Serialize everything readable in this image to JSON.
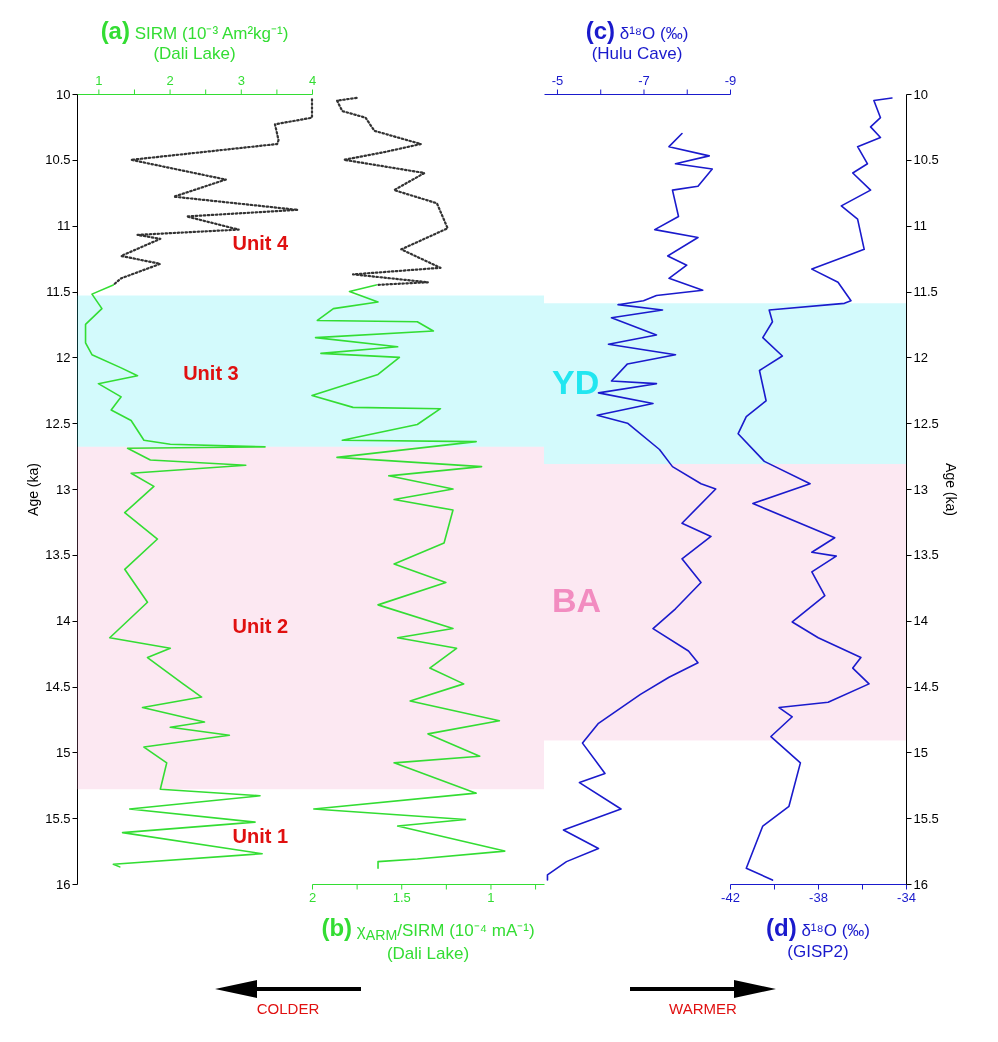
{
  "chart_data": [
    {
      "type": "line",
      "xlabel": "(a) SIRM (10⁻³ Am²kg⁻¹)\n(Dali Lake)",
      "ylabel": "Age (ka)",
      "xlim": [
        0.7,
        4
      ],
      "xticks": [
        1,
        {
          "value": 1.5,
          "label": null
        },
        2,
        {
          "value": 2.5,
          "label": null
        },
        3,
        {
          "value": 3.5,
          "label": null
        },
        4
      ],
      "ylim": [
        16,
        10
      ],
      "yticks": [
        10,
        10.5,
        11,
        11.5,
        12,
        12.5,
        13,
        13.5,
        14,
        14.5,
        15,
        15.5,
        16
      ],
      "bands": [
        {
          "axis": "y",
          "from": 11.53,
          "to": 12.68,
          "color": "#22e6f0"
        },
        {
          "axis": "y",
          "from": 12.68,
          "to": 15.28,
          "color": "#f28cc0"
        }
      ],
      "annotations": [
        "Unit 4",
        "Unit 3",
        "Unit 2",
        "Unit 1"
      ],
      "series": [
        {
          "color": "#333333",
          "line_style": "dotted",
          "x": [
            4.0,
            4.0,
            3.48,
            3.53,
            3.51,
            1.46,
            2.79,
            2.06,
            3.8,
            2.24,
            2.97,
            1.55,
            1.87,
            1.32,
            1.87,
            1.32,
            1.21
          ],
          "values": [
            10.04,
            10.18,
            10.23,
            10.35,
            10.38,
            10.5,
            10.65,
            10.78,
            10.88,
            10.93,
            11.03,
            11.07,
            11.1,
            11.23,
            11.29,
            11.4,
            11.45
          ]
        },
        {
          "color": "#33dd33",
          "x": [
            1.21,
            0.91,
            1.05,
            0.82,
            0.82,
            0.91,
            1.32,
            1.55,
            1.0,
            1.32,
            1.18,
            1.46,
            1.64,
            2.01,
            3.34,
            1.41,
            1.73,
            3.07,
            1.46,
            1.78,
            1.37,
            1.83,
            1.37,
            1.69,
            1.16,
            2.01,
            1.69,
            2.19,
            2.45,
            1.62,
            2.49,
            2.01,
            2.84,
            1.64,
            1.96,
            1.87,
            3.27,
            1.44,
            3.2,
            1.34,
            3.3,
            1.21,
            1.3
          ],
          "values": [
            11.45,
            11.52,
            11.63,
            11.75,
            11.89,
            11.98,
            12.08,
            12.14,
            12.2,
            12.3,
            12.4,
            12.48,
            12.63,
            12.66,
            12.68,
            12.69,
            12.78,
            12.82,
            12.88,
            12.98,
            13.18,
            13.38,
            13.61,
            13.86,
            14.13,
            14.21,
            14.28,
            14.48,
            14.58,
            14.66,
            14.77,
            14.81,
            14.87,
            14.96,
            15.08,
            15.28,
            15.33,
            15.43,
            15.53,
            15.61,
            15.77,
            15.85,
            15.87
          ]
        }
      ]
    },
    {
      "type": "line",
      "xlabel": "(b) χ$_{ARM}$/SIRM (10⁻⁴ mA⁻¹)\n(Dali Lake)",
      "xlim": [
        2,
        0.7
      ],
      "xticks": [
        2,
        {
          "value": 1.75,
          "label": null
        },
        1.5,
        {
          "value": 1.25,
          "label": null
        },
        1,
        {
          "value": 0.75,
          "label": null
        }
      ],
      "ylim": [
        16,
        10
      ],
      "tick_labels": "x",
      "bands": [
        {
          "axis": "y",
          "from": 11.53,
          "to": 12.68,
          "color": "#22e6f0"
        },
        {
          "axis": "y",
          "from": 12.68,
          "to": 15.28,
          "color": "#f28cc0"
        }
      ],
      "annotations": [
        "COLDER"
      ],
      "series": [
        {
          "color": "#333333",
          "line_style": "dotted",
          "x": [
            1.75,
            1.86,
            1.83,
            1.7,
            1.65,
            1.39,
            1.59,
            1.82,
            1.37,
            1.54,
            1.3,
            1.24,
            1.5,
            1.28,
            1.77,
            1.35,
            1.64
          ],
          "values": [
            10.03,
            10.05,
            10.13,
            10.18,
            10.28,
            10.38,
            10.44,
            10.5,
            10.6,
            10.73,
            10.83,
            11.02,
            11.18,
            11.32,
            11.37,
            11.43,
            11.45
          ]
        },
        {
          "color": "#33dd33",
          "x": [
            1.64,
            1.79,
            1.63,
            1.88,
            1.97,
            1.41,
            1.32,
            1.98,
            1.52,
            1.95,
            1.51,
            1.63,
            2.0,
            1.77,
            1.28,
            1.41,
            1.83,
            1.08,
            1.86,
            1.05,
            1.57,
            1.21,
            1.54,
            1.21,
            1.26,
            1.54,
            1.25,
            1.63,
            1.21,
            1.52,
            1.19,
            1.34,
            1.15,
            1.45,
            0.95,
            1.35,
            1.06,
            1.54,
            1.08,
            1.99,
            1.14,
            1.52,
            0.92,
            1.41,
            1.63,
            1.63
          ],
          "values": [
            11.45,
            11.5,
            11.58,
            11.63,
            11.72,
            11.73,
            11.8,
            11.85,
            11.92,
            11.97,
            12.0,
            12.13,
            12.29,
            12.38,
            12.39,
            12.51,
            12.63,
            12.64,
            12.76,
            12.83,
            12.9,
            13.0,
            13.08,
            13.16,
            13.41,
            13.57,
            13.71,
            13.88,
            14.06,
            14.13,
            14.21,
            14.36,
            14.48,
            14.61,
            14.76,
            14.86,
            15.03,
            15.08,
            15.31,
            15.43,
            15.51,
            15.56,
            15.75,
            15.81,
            15.83,
            15.88
          ]
        }
      ]
    },
    {
      "type": "line",
      "xlabel": "(c) δ¹⁸O (‰)\n(Hulu Cave)",
      "xlim": [
        -4.7,
        -9
      ],
      "xticks": [
        -5,
        {
          "value": -6,
          "label": null
        },
        -7,
        {
          "value": -8,
          "label": null
        },
        -9
      ],
      "ylim": [
        16,
        10
      ],
      "tick_labels": "x",
      "bands": [
        {
          "axis": "y",
          "from": 11.59,
          "to": 12.81,
          "color": "#22e6f0",
          "label": "YD"
        },
        {
          "axis": "y",
          "from": 12.81,
          "to": 14.91,
          "color": "#f28cc0",
          "label": "BA"
        }
      ],
      "annotations": [
        "WARMER"
      ],
      "series": [
        {
          "color": "#1a1acc",
          "x": [
            -7.89,
            -7.59,
            -8.52,
            -7.74,
            -8.59,
            -8.26,
            -7.67,
            -7.81,
            -7.26,
            -8.26,
            -7.56,
            -8.0,
            -7.59,
            -8.37,
            -7.3,
            -7.0,
            -6.41,
            -7.44,
            -6.26,
            -7.3,
            -6.19,
            -7.74,
            -6.63,
            -6.26,
            -7.3,
            -5.96,
            -7.22,
            -5.93,
            -6.63,
            -7.37,
            -7.67,
            -8.33,
            -8.67,
            -7.89,
            -8.56,
            -7.89,
            -8.33,
            -7.74,
            -7.22,
            -8.04,
            -8.26,
            -7.59,
            -6.93,
            -5.96,
            -5.59,
            -6.11,
            -5.52,
            -6.48,
            -5.15,
            -5.96,
            -5.22,
            -4.78,
            -4.78
          ],
          "values": [
            10.3,
            10.4,
            10.47,
            10.53,
            10.57,
            10.7,
            10.73,
            10.93,
            11.03,
            11.09,
            11.23,
            11.3,
            11.4,
            11.49,
            11.53,
            11.57,
            11.6,
            11.64,
            11.7,
            11.83,
            11.9,
            11.98,
            12.05,
            12.18,
            12.2,
            12.27,
            12.35,
            12.44,
            12.5,
            12.7,
            12.83,
            12.96,
            13.0,
            13.26,
            13.36,
            13.53,
            13.71,
            13.91,
            14.06,
            14.23,
            14.32,
            14.43,
            14.56,
            14.78,
            14.93,
            15.16,
            15.23,
            15.43,
            15.59,
            15.73,
            15.83,
            15.93,
            15.97
          ]
        }
      ]
    },
    {
      "type": "line",
      "xlabel": "(d) δ¹⁸O (‰)\n(GISP2)",
      "ylabel": "Age (ka)",
      "xlim": [
        -42,
        -34
      ],
      "xticks": [
        -42,
        {
          "value": -40,
          "label": null
        },
        -38,
        {
          "value": -36,
          "label": null
        },
        -34
      ],
      "ylim": [
        16,
        10
      ],
      "yticks": [
        10,
        10.5,
        11,
        11.5,
        12,
        12.5,
        13,
        13.5,
        14,
        14.5,
        15,
        15.5,
        16
      ],
      "bands": [
        {
          "axis": "y",
          "from": 11.59,
          "to": 12.81,
          "color": "#22e6f0"
        },
        {
          "axis": "y",
          "from": 12.81,
          "to": 14.91,
          "color": "#f28cc0"
        }
      ],
      "series": [
        {
          "color": "#1a1acc",
          "x": [
            -34.64,
            -35.46,
            -35.16,
            -35.61,
            -35.16,
            -36.2,
            -35.75,
            -36.42,
            -35.61,
            -36.94,
            -36.2,
            -35.9,
            -38.28,
            -37.09,
            -36.5,
            -36.8,
            -40.22,
            -40.07,
            -40.51,
            -39.62,
            -40.66,
            -40.36,
            -41.26,
            -41.63,
            -40.44,
            -38.36,
            -40.96,
            -37.24,
            -38.28,
            -37.17,
            -38.28,
            -37.69,
            -39.17,
            -37.99,
            -36.05,
            -36.42,
            -35.68,
            -37.54,
            -39.77,
            -39.17,
            -40.14,
            -38.8,
            -39.32,
            -40.51,
            -41.26,
            -40.07
          ],
          "values": [
            10.03,
            10.05,
            10.18,
            10.25,
            10.33,
            10.4,
            10.53,
            10.6,
            10.73,
            10.85,
            10.95,
            11.18,
            11.33,
            11.43,
            11.57,
            11.59,
            11.64,
            11.73,
            11.85,
            11.99,
            12.1,
            12.33,
            12.45,
            12.58,
            12.79,
            12.96,
            13.11,
            13.37,
            13.48,
            13.51,
            13.63,
            13.81,
            14.01,
            14.13,
            14.28,
            14.36,
            14.48,
            14.62,
            14.66,
            14.73,
            14.88,
            15.08,
            15.41,
            15.56,
            15.88,
            15.97
          ]
        }
      ]
    }
  ]
}
